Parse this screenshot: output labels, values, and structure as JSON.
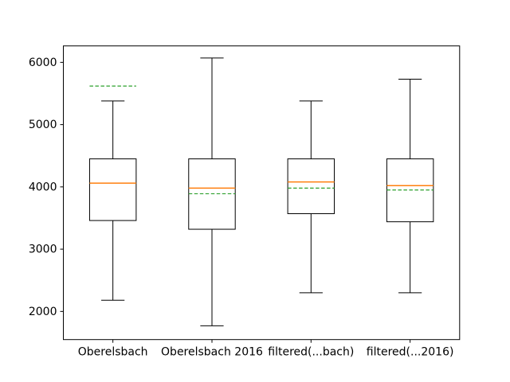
{
  "figure": {
    "background": "#ffffff"
  },
  "chart_data": {
    "type": "boxplot",
    "title": "",
    "xlabel": "",
    "ylabel": "",
    "categories": [
      "Oberelsbach",
      "Oberelsbach 2016",
      "filtered(...bach)",
      "filtered(...2016)"
    ],
    "positions": [
      1,
      2,
      3,
      4
    ],
    "series": [
      {
        "name": "Oberelsbach",
        "whisker_low": 2180,
        "q1": 3460,
        "median": 4060,
        "q3": 4450,
        "whisker_high": 5380,
        "mean": 5620
      },
      {
        "name": "Oberelsbach 2016",
        "whisker_low": 1770,
        "q1": 3320,
        "median": 3980,
        "q3": 4450,
        "whisker_high": 6070,
        "mean": 3890
      },
      {
        "name": "filtered(...bach)",
        "whisker_low": 2300,
        "q1": 3570,
        "median": 4080,
        "q3": 4450,
        "whisker_high": 5380,
        "mean": 3980
      },
      {
        "name": "filtered(...2016)",
        "whisker_low": 2300,
        "q1": 3440,
        "median": 4020,
        "q3": 4450,
        "whisker_high": 5730,
        "mean": 3950
      }
    ],
    "yticks": [
      2000,
      3000,
      4000,
      5000,
      6000
    ],
    "ytick_labels": [
      "2000",
      "3000",
      "4000",
      "5000",
      "6000"
    ],
    "ylim": [
      1548,
      6264
    ],
    "xlim": [
      0.5,
      4.5
    ],
    "grid": false,
    "legend": "none",
    "box_width": 0.47,
    "mean_line_style": "dashed",
    "colors": {
      "box": "#000000",
      "whisker": "#000000",
      "median": "#ff7f0e",
      "mean": "#2ca02c",
      "axis": "#000000",
      "text": "#000000",
      "background": "#ffffff"
    }
  }
}
